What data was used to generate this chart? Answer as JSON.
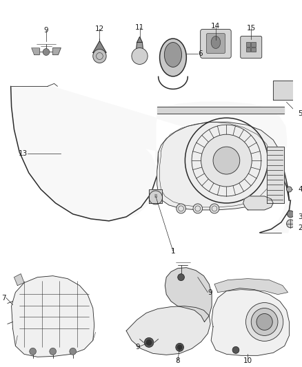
{
  "background_color": "#ffffff",
  "fig_width": 4.38,
  "fig_height": 5.33,
  "dpi": 100,
  "line_color": "#2a2a2a",
  "label_color": "#1a1a1a",
  "label_fontsize": 7.5,
  "lw_main": 1.1,
  "lw_thin": 0.6,
  "lw_hair": 0.4
}
